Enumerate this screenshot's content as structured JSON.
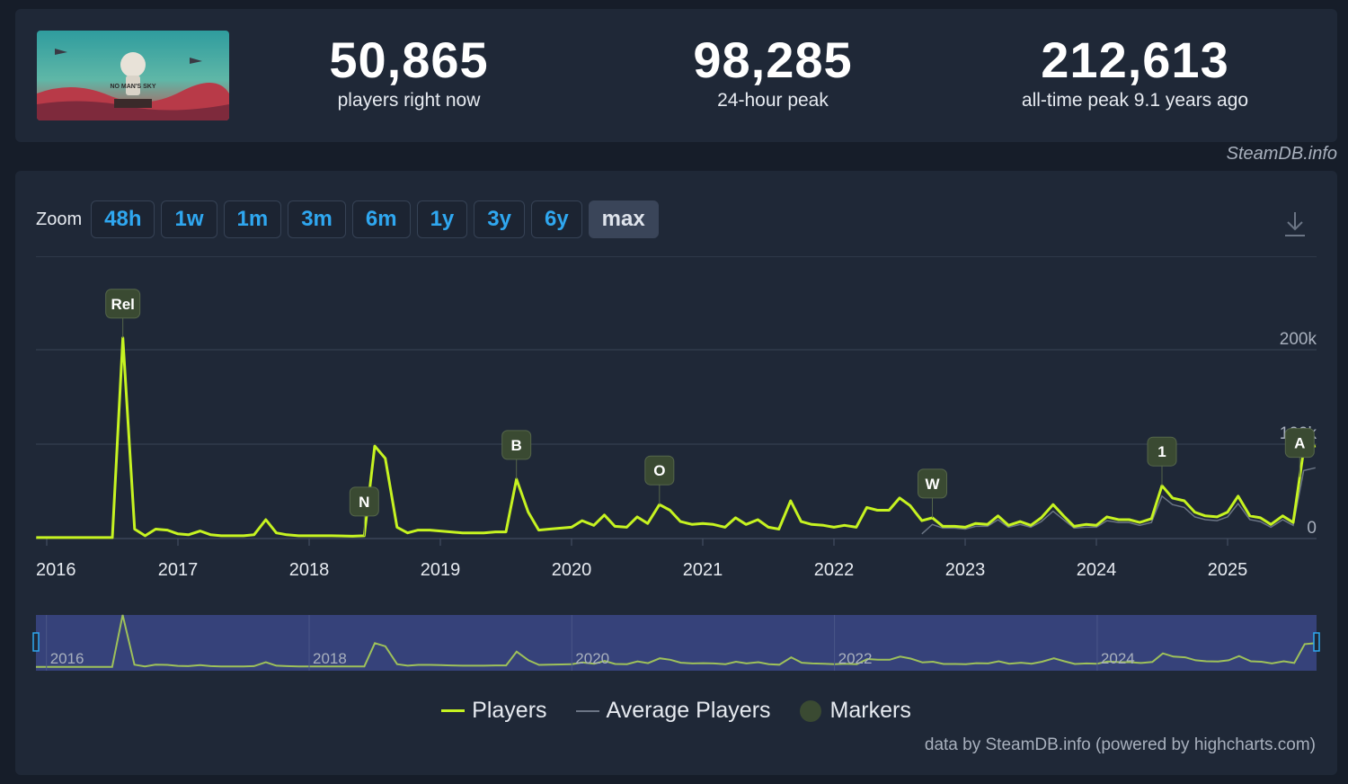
{
  "header": {
    "game_art_alt": "NO MAN'S SKY",
    "stats": [
      {
        "value": "50,865",
        "label": "players right now"
      },
      {
        "value": "98,285",
        "label": "24-hour peak"
      },
      {
        "value": "212,613",
        "label": "all-time peak 9.1 years ago"
      }
    ],
    "credit": "SteamDB.info"
  },
  "zoom": {
    "label": "Zoom",
    "buttons": [
      "48h",
      "1w",
      "1m",
      "3m",
      "6m",
      "1y",
      "3y",
      "6y",
      "max"
    ],
    "active": "max"
  },
  "colors": {
    "players": "#c6f321",
    "average": "#6b7585",
    "marker": "#3a4a32",
    "button_text": "#2fa7f0",
    "navigator": "#36427a"
  },
  "legend": {
    "players": "Players",
    "average": "Average Players",
    "markers": "Markers"
  },
  "footer_credit": "data by SteamDB.info (powered by highcharts.com)",
  "chart_data": {
    "type": "line",
    "x_tick_labels": [
      "2016",
      "2017",
      "2018",
      "2019",
      "2020",
      "2021",
      "2022",
      "2023",
      "2024",
      "2025"
    ],
    "y_tick_labels": [
      "0",
      "100k",
      "200k"
    ],
    "ylim": [
      0,
      200000
    ],
    "grid": true,
    "legend_position": "bottom-center",
    "navigator_labels": [
      "2016",
      "2018",
      "2020",
      "2022",
      "2024"
    ],
    "markers": [
      {
        "label": "Rel",
        "x": 2016.58
      },
      {
        "label": "N",
        "x": 2018.42
      },
      {
        "label": "B",
        "x": 2019.58
      },
      {
        "label": "O",
        "x": 2020.67
      },
      {
        "label": "W",
        "x": 2022.75
      },
      {
        "label": "1",
        "x": 2024.5
      },
      {
        "label": "A",
        "x": 2025.55
      }
    ],
    "series": [
      {
        "name": "Players",
        "points": [
          [
            2015.92,
            1000
          ],
          [
            2016.0,
            1000
          ],
          [
            2016.5,
            1000
          ],
          [
            2016.58,
            212613
          ],
          [
            2016.67,
            10000
          ],
          [
            2016.75,
            3000
          ],
          [
            2016.83,
            10000
          ],
          [
            2016.92,
            9000
          ],
          [
            2017.0,
            5000
          ],
          [
            2017.08,
            4000
          ],
          [
            2017.17,
            8000
          ],
          [
            2017.25,
            4000
          ],
          [
            2017.33,
            3000
          ],
          [
            2017.5,
            3000
          ],
          [
            2017.58,
            4000
          ],
          [
            2017.67,
            20000
          ],
          [
            2017.75,
            6000
          ],
          [
            2017.83,
            4000
          ],
          [
            2017.92,
            3000
          ],
          [
            2018.0,
            3000
          ],
          [
            2018.17,
            3000
          ],
          [
            2018.33,
            2500
          ],
          [
            2018.42,
            3000
          ],
          [
            2018.5,
            98000
          ],
          [
            2018.58,
            85000
          ],
          [
            2018.67,
            12000
          ],
          [
            2018.75,
            6000
          ],
          [
            2018.83,
            9000
          ],
          [
            2018.92,
            9000
          ],
          [
            2019.0,
            8000
          ],
          [
            2019.08,
            7000
          ],
          [
            2019.17,
            6000
          ],
          [
            2019.25,
            6000
          ],
          [
            2019.33,
            6000
          ],
          [
            2019.42,
            7000
          ],
          [
            2019.5,
            7000
          ],
          [
            2019.58,
            63000
          ],
          [
            2019.67,
            28000
          ],
          [
            2019.75,
            9000
          ],
          [
            2019.83,
            10000
          ],
          [
            2019.92,
            11000
          ],
          [
            2020.0,
            12000
          ],
          [
            2020.08,
            19000
          ],
          [
            2020.17,
            14000
          ],
          [
            2020.25,
            25000
          ],
          [
            2020.33,
            13000
          ],
          [
            2020.42,
            12000
          ],
          [
            2020.5,
            23000
          ],
          [
            2020.58,
            16000
          ],
          [
            2020.67,
            36000
          ],
          [
            2020.75,
            30000
          ],
          [
            2020.83,
            18000
          ],
          [
            2020.92,
            15000
          ],
          [
            2021.0,
            16000
          ],
          [
            2021.08,
            15000
          ],
          [
            2021.17,
            12000
          ],
          [
            2021.25,
            22000
          ],
          [
            2021.33,
            15000
          ],
          [
            2021.42,
            20000
          ],
          [
            2021.5,
            12000
          ],
          [
            2021.58,
            10000
          ],
          [
            2021.67,
            40000
          ],
          [
            2021.75,
            18000
          ],
          [
            2021.83,
            15000
          ],
          [
            2021.92,
            14000
          ],
          [
            2022.0,
            12000
          ],
          [
            2022.08,
            14000
          ],
          [
            2022.17,
            12000
          ],
          [
            2022.25,
            33000
          ],
          [
            2022.33,
            30000
          ],
          [
            2022.42,
            30000
          ],
          [
            2022.5,
            43000
          ],
          [
            2022.58,
            35000
          ],
          [
            2022.67,
            19000
          ],
          [
            2022.75,
            22000
          ],
          [
            2022.83,
            13000
          ],
          [
            2022.92,
            13000
          ],
          [
            2023.0,
            12000
          ],
          [
            2023.08,
            16000
          ],
          [
            2023.17,
            15000
          ],
          [
            2023.25,
            24000
          ],
          [
            2023.33,
            14000
          ],
          [
            2023.42,
            18000
          ],
          [
            2023.5,
            14000
          ],
          [
            2023.58,
            22000
          ],
          [
            2023.67,
            36000
          ],
          [
            2023.75,
            24000
          ],
          [
            2023.83,
            13000
          ],
          [
            2023.92,
            15000
          ],
          [
            2024.0,
            14000
          ],
          [
            2024.08,
            23000
          ],
          [
            2024.17,
            20000
          ],
          [
            2024.25,
            20000
          ],
          [
            2024.33,
            17000
          ],
          [
            2024.42,
            21000
          ],
          [
            2024.5,
            56000
          ],
          [
            2024.58,
            43000
          ],
          [
            2024.67,
            40000
          ],
          [
            2024.75,
            28000
          ],
          [
            2024.83,
            24000
          ],
          [
            2024.92,
            23000
          ],
          [
            2025.0,
            28000
          ],
          [
            2025.08,
            45000
          ],
          [
            2025.17,
            24000
          ],
          [
            2025.25,
            22000
          ],
          [
            2025.33,
            15000
          ],
          [
            2025.42,
            24000
          ],
          [
            2025.5,
            17000
          ],
          [
            2025.58,
            94000
          ],
          [
            2025.67,
            98285
          ]
        ]
      },
      {
        "name": "Average Players",
        "points": [
          [
            2022.67,
            5000
          ],
          [
            2022.75,
            15000
          ],
          [
            2022.83,
            11000
          ],
          [
            2022.92,
            11000
          ],
          [
            2023.0,
            10000
          ],
          [
            2023.08,
            13000
          ],
          [
            2023.17,
            13000
          ],
          [
            2023.25,
            20000
          ],
          [
            2023.33,
            12000
          ],
          [
            2023.42,
            15000
          ],
          [
            2023.5,
            12000
          ],
          [
            2023.58,
            18000
          ],
          [
            2023.67,
            29000
          ],
          [
            2023.75,
            20000
          ],
          [
            2023.83,
            11000
          ],
          [
            2023.92,
            12000
          ],
          [
            2024.0,
            12000
          ],
          [
            2024.08,
            19000
          ],
          [
            2024.17,
            17000
          ],
          [
            2024.25,
            17000
          ],
          [
            2024.33,
            14000
          ],
          [
            2024.42,
            17000
          ],
          [
            2024.5,
            45000
          ],
          [
            2024.58,
            36000
          ],
          [
            2024.67,
            33000
          ],
          [
            2024.75,
            23000
          ],
          [
            2024.83,
            20000
          ],
          [
            2024.92,
            19000
          ],
          [
            2025.0,
            23000
          ],
          [
            2025.08,
            37000
          ],
          [
            2025.17,
            20000
          ],
          [
            2025.25,
            18000
          ],
          [
            2025.33,
            12000
          ],
          [
            2025.42,
            20000
          ],
          [
            2025.5,
            14000
          ],
          [
            2025.58,
            72000
          ],
          [
            2025.67,
            75000
          ]
        ]
      }
    ]
  }
}
